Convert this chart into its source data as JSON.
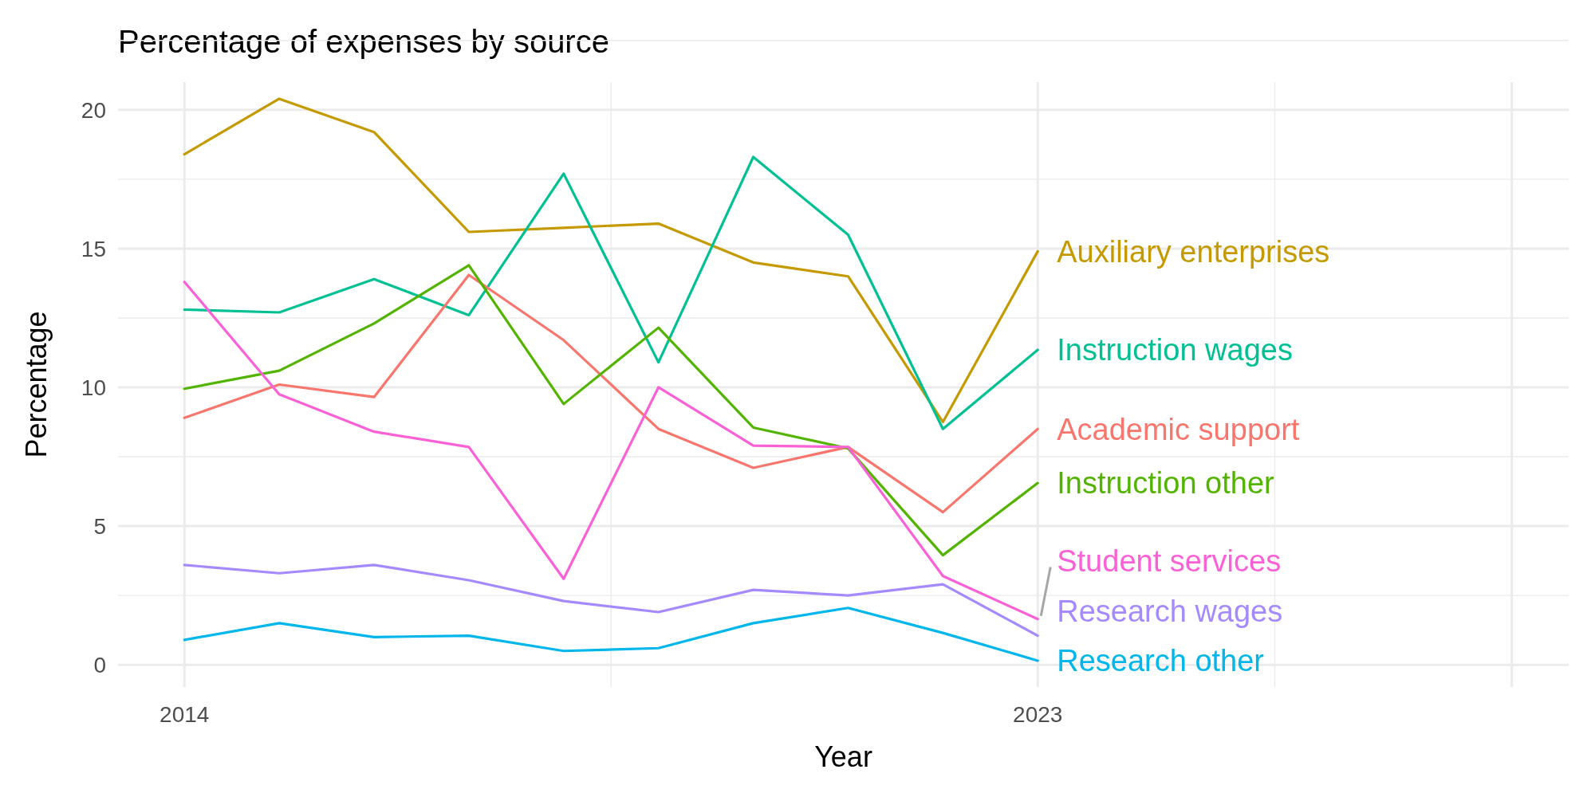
{
  "chart_data": {
    "type": "line",
    "title": "Percentage of expenses by source",
    "xlabel": "Year",
    "ylabel": "Percentage",
    "x": [
      2014,
      2015,
      2016,
      2017,
      2018,
      2019,
      2020,
      2021,
      2022,
      2023
    ],
    "xlim": [
      2013.3,
      2028.6
    ],
    "xticks": [
      2014,
      2023,
      {
        "value": 2028,
        "label": null
      }
    ],
    "ylim": [
      -0.8,
      21.0
    ],
    "yticks": [
      0,
      5,
      10,
      15,
      20
    ],
    "grid": true,
    "series": [
      {
        "name": "Auxiliary enterprises",
        "color": "#c49a00",
        "values": [
          18.4,
          20.4,
          19.2,
          15.6,
          15.75,
          15.9,
          14.5,
          14.0,
          8.75,
          14.9
        ]
      },
      {
        "name": "Instruction wages",
        "color": "#00c094",
        "values": [
          12.8,
          12.7,
          13.9,
          12.6,
          17.7,
          10.9,
          18.3,
          15.5,
          8.5,
          11.35
        ]
      },
      {
        "name": "Academic support",
        "color": "#f8766d",
        "values": [
          8.9,
          10.1,
          9.65,
          14.05,
          11.7,
          8.5,
          7.1,
          7.85,
          5.5,
          8.5
        ]
      },
      {
        "name": "Instruction other",
        "color": "#53b400",
        "values": [
          9.95,
          10.6,
          12.3,
          14.4,
          9.4,
          12.15,
          8.55,
          7.8,
          3.95,
          6.55
        ]
      },
      {
        "name": "Student services",
        "color": "#fb61d7",
        "values": [
          13.8,
          9.75,
          8.4,
          7.85,
          3.1,
          10.0,
          7.9,
          7.85,
          3.2,
          1.65
        ]
      },
      {
        "name": "Research wages",
        "color": "#a58aff",
        "values": [
          3.6,
          3.3,
          3.6,
          3.05,
          2.3,
          1.9,
          2.7,
          2.5,
          2.9,
          1.05
        ]
      },
      {
        "name": "Research other",
        "color": "#00b6eb",
        "values": [
          0.9,
          1.5,
          1.0,
          1.05,
          0.5,
          0.6,
          1.5,
          2.05,
          1.15,
          0.15
        ]
      }
    ]
  }
}
